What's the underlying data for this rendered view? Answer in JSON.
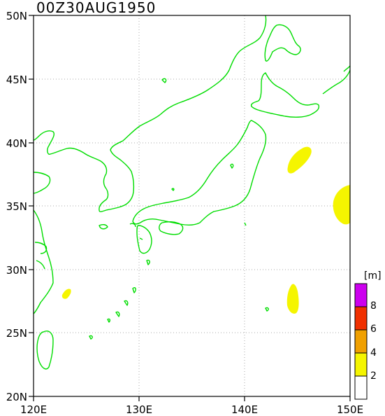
{
  "title": "00Z30AUG1950",
  "map": {
    "lon_range": [
      120,
      150
    ],
    "lat_range": [
      20,
      50
    ],
    "grid_lines": true,
    "grid_style": "dotted",
    "coastline_color": "#00dd00",
    "x_ticks": [
      {
        "value": 120,
        "label": "120E"
      },
      {
        "value": 130,
        "label": "130E"
      },
      {
        "value": 140,
        "label": "140E"
      },
      {
        "value": 150,
        "label": "150E"
      }
    ],
    "y_ticks": [
      {
        "value": 50,
        "label": "50N"
      },
      {
        "value": 45,
        "label": "45N"
      },
      {
        "value": 40,
        "label": "40N"
      },
      {
        "value": 35,
        "label": "35N"
      },
      {
        "value": 30,
        "label": "30N"
      },
      {
        "value": 25,
        "label": "25N"
      },
      {
        "value": 20,
        "label": "20N"
      }
    ]
  },
  "chart_data": {
    "type": "heatmap",
    "unit": "[m]",
    "levels": [
      {
        "from": 0,
        "to": 2,
        "color": "#ffffff"
      },
      {
        "from": 2,
        "to": 4,
        "color": "#f5f500"
      },
      {
        "from": 4,
        "to": 6,
        "color": "#f0a000"
      },
      {
        "from": 6,
        "to": 8,
        "color": "#f03000"
      },
      {
        "from": 8,
        "to": 10,
        "color": "#cc00ee"
      }
    ],
    "colorbar_labels": [
      "2",
      "4",
      "6",
      "8"
    ],
    "shaded_regions": [
      {
        "level": "2-4",
        "center_lon": 145.1,
        "center_lat": 38.1
      },
      {
        "level": "2-4",
        "center_lon": 149.3,
        "center_lat": 35.0
      },
      {
        "level": "2-4",
        "center_lon": 144.5,
        "center_lat": 27.8
      },
      {
        "level": "2-4",
        "center_lon": 123.0,
        "center_lat": 28.1
      }
    ]
  }
}
